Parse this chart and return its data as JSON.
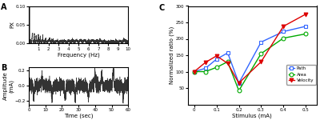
{
  "panel_A": {
    "title": "A",
    "xlabel": "Frequency (Hz)",
    "ylabel": "PX",
    "xlim": [
      0,
      10
    ],
    "ylim": [
      0,
      0.1
    ],
    "yticks": [
      0,
      0.05,
      0.1
    ],
    "xticks": [
      1,
      2,
      3,
      4,
      5,
      6,
      7,
      8,
      9,
      10
    ],
    "color": "#333333",
    "peak_freq": 0.08,
    "peak_val": 0.095,
    "peak2_freq": 0.5,
    "peak2_val": 0.025,
    "peak3_freq": 0.9,
    "peak3_val": 0.02
  },
  "panel_B": {
    "title": "B",
    "xlabel": "Time (sec)",
    "ylabel": "Amplitude\n(mA)",
    "xlim": [
      0,
      60
    ],
    "ylim": [
      -0.25,
      0.25
    ],
    "yticks": [
      -0.2,
      0,
      0.2
    ],
    "xticks": [
      0,
      10,
      20,
      30,
      40,
      50,
      60
    ],
    "color": "#333333"
  },
  "panel_C": {
    "title": "C",
    "xlabel": "Stimulus (mA)",
    "ylabel": "Normalized ratio (%)",
    "xlim": [
      -0.03,
      0.55
    ],
    "ylim": [
      0,
      300
    ],
    "yticks": [
      50,
      100,
      150,
      200,
      250,
      300
    ],
    "xticks": [
      0,
      0.1,
      0.2,
      0.3,
      0.4,
      0.5
    ],
    "path_x": [
      0,
      0.05,
      0.1,
      0.15,
      0.2,
      0.3,
      0.4,
      0.5
    ],
    "path_y": [
      100,
      110,
      138,
      157,
      65,
      190,
      222,
      238
    ],
    "area_x": [
      0,
      0.05,
      0.1,
      0.15,
      0.2,
      0.3,
      0.4,
      0.5
    ],
    "area_y": [
      100,
      100,
      113,
      130,
      42,
      155,
      202,
      215
    ],
    "velocity_x": [
      0,
      0.05,
      0.1,
      0.15,
      0.2,
      0.3,
      0.4,
      0.5
    ],
    "velocity_y": [
      100,
      128,
      148,
      125,
      65,
      130,
      238,
      275
    ],
    "path_color": "#3366ff",
    "area_color": "#00aa00",
    "velocity_color": "#dd0000",
    "path_marker": "s",
    "area_marker": "o",
    "velocity_marker": "v"
  }
}
